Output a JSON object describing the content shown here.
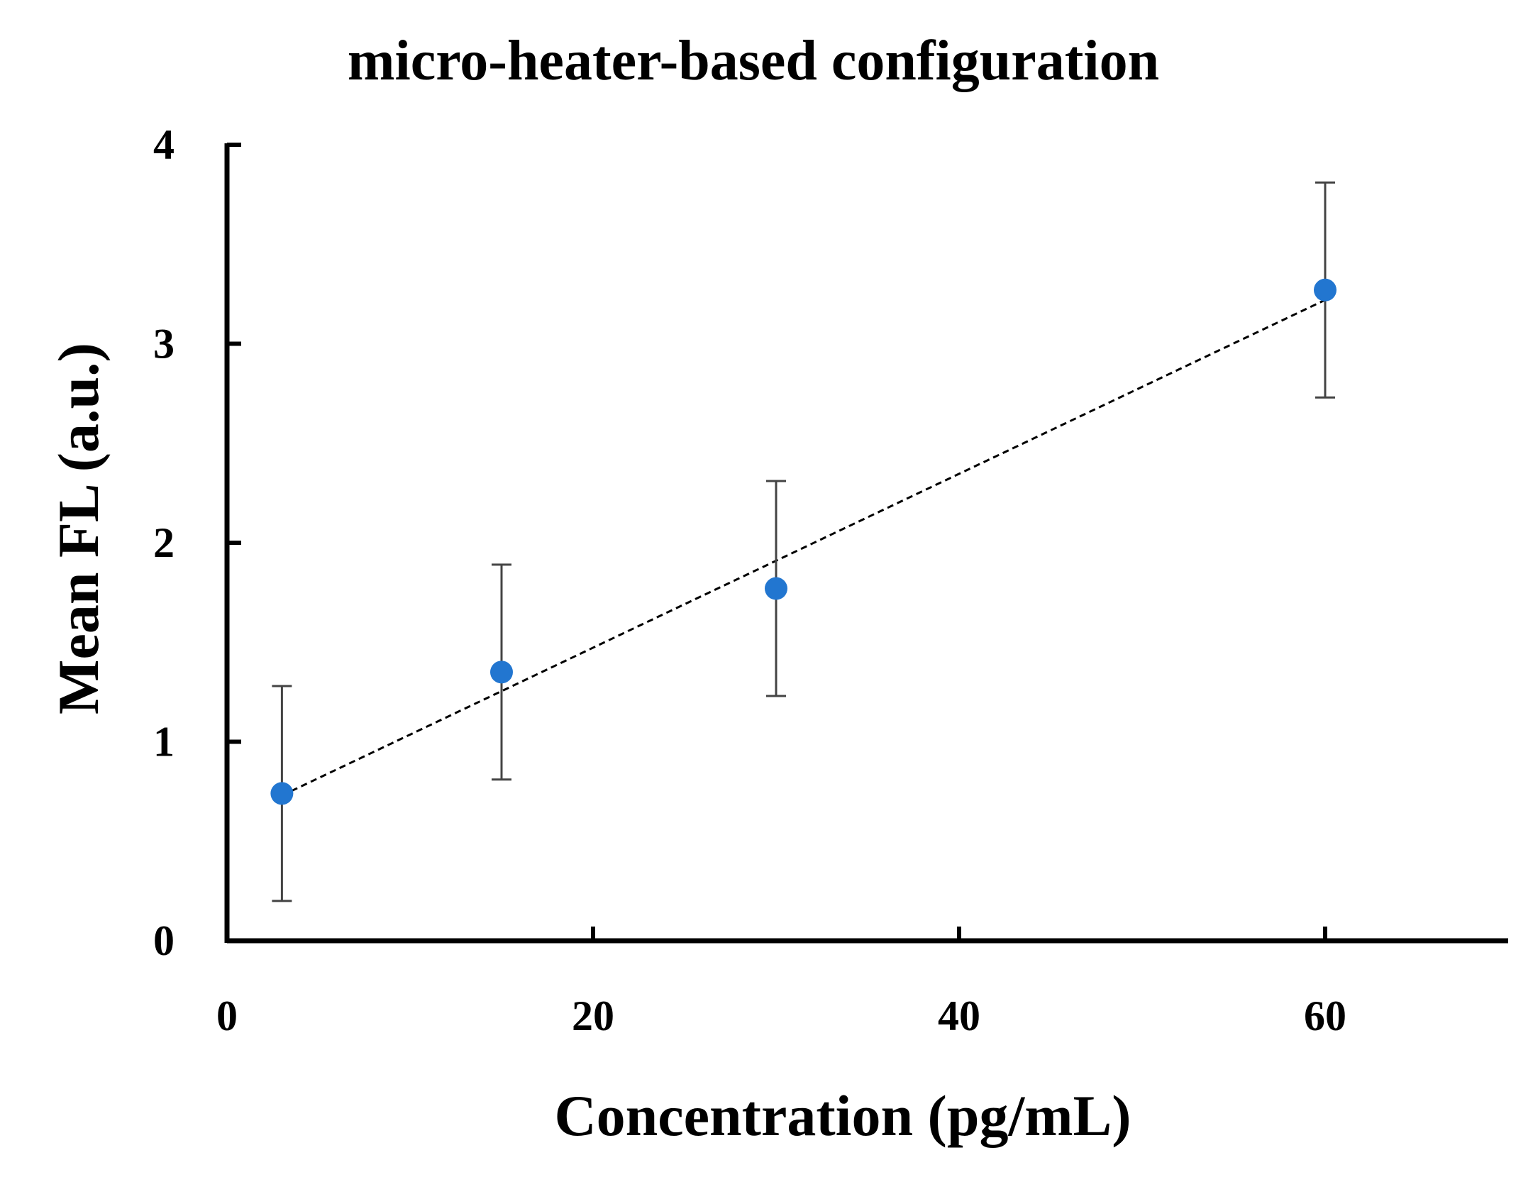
{
  "chart_data": {
    "type": "scatter",
    "title": "micro-heater-based configuration",
    "xlabel": "Concentration (pg/mL)",
    "ylabel": "Mean FL (a.u.)",
    "xlim": [
      0,
      70
    ],
    "ylim": [
      0,
      4
    ],
    "xticks": [
      0,
      20,
      40,
      60
    ],
    "yticks": [
      0,
      1,
      2,
      3,
      4
    ],
    "x_tick_labels": [
      "0",
      "20",
      "40",
      "60"
    ],
    "y_tick_labels": [
      "0",
      "1",
      "2",
      "3",
      "4"
    ],
    "grid": false,
    "legend": "none",
    "marker_color": "#2276d0",
    "errorbar_color": "#444444",
    "trendline": {
      "style": "dotted",
      "color": "#000000",
      "start": [
        3,
        0.73
      ],
      "end": [
        60,
        3.22
      ]
    },
    "points": [
      {
        "x": 3,
        "y": 0.74,
        "err": 0.54
      },
      {
        "x": 15,
        "y": 1.35,
        "err": 0.54
      },
      {
        "x": 30,
        "y": 1.77,
        "err": 0.54
      },
      {
        "x": 60,
        "y": 3.27,
        "err": 0.54
      }
    ]
  }
}
